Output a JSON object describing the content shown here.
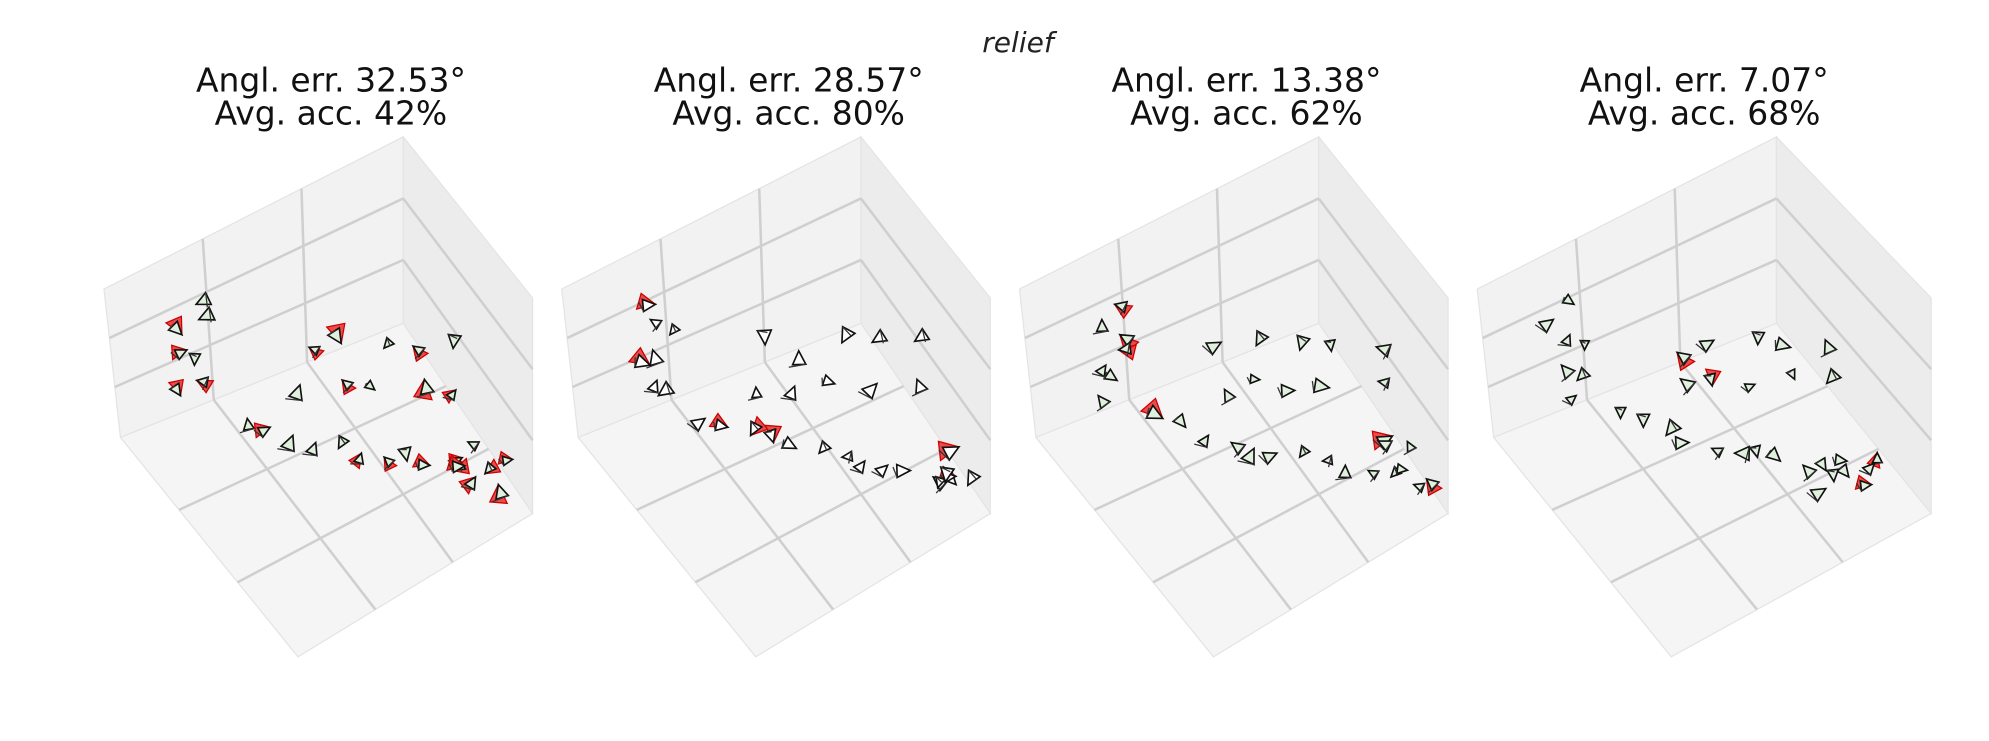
{
  "title": "relief",
  "panels": [
    {
      "error_line": "Angl. err. 32.53°",
      "accuracy_line": "Avg. acc.  42%"
    },
    {
      "error_line": "Angl. err. 28.57°",
      "accuracy_line": "Avg. acc.  80%"
    },
    {
      "error_line": "Angl. err. 13.38°",
      "accuracy_line": "Avg. acc.  62%"
    },
    {
      "error_line": "Angl. err. 7.07°",
      "accuracy_line": "Avg. acc.  68%"
    }
  ]
}
